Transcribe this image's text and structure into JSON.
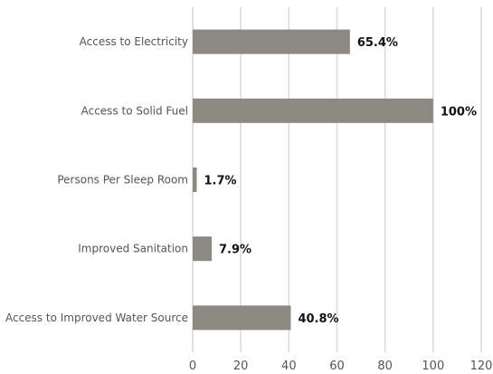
{
  "chart_data": {
    "type": "bar",
    "orientation": "horizontal",
    "categories": [
      "Access to Electricity",
      "Access to Solid Fuel",
      "Persons Per Sleep Room",
      "Improved Sanitation",
      "Access to Improved Water Source"
    ],
    "values": [
      65.4,
      100,
      1.7,
      7.9,
      40.8
    ],
    "data_labels": [
      "65.4%",
      "100%",
      "1.7%",
      "7.9%",
      "40.8%"
    ],
    "xlim": [
      0,
      120
    ],
    "x_ticks": [
      0,
      20,
      40,
      60,
      80,
      100,
      120
    ],
    "x_tick_labels": [
      "0",
      "20",
      "40",
      "60",
      "80",
      "100",
      "120"
    ],
    "grid": "vertical",
    "legend": "none",
    "colors": {
      "bar": "#8c8882",
      "grid": "#d9d9d9"
    }
  }
}
